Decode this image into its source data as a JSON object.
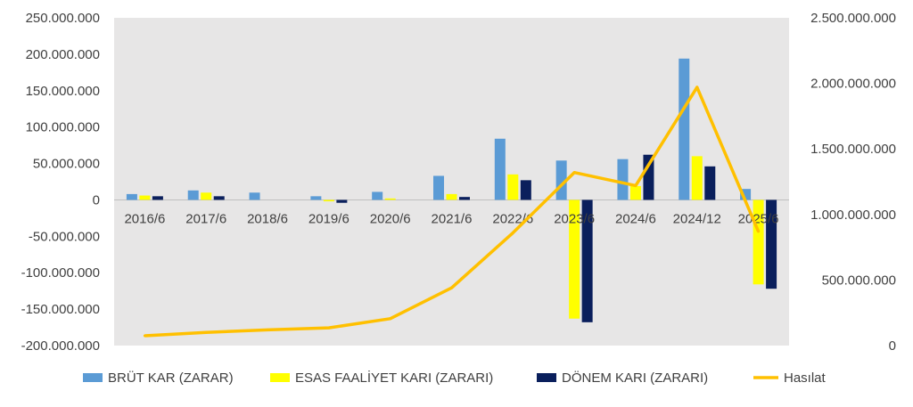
{
  "chart_data": {
    "type": "bar",
    "categories": [
      "2016/6",
      "2017/6",
      "2018/6",
      "2019/6",
      "2020/6",
      "2021/6",
      "2022/6",
      "2023/6",
      "2024/6",
      "2024/12",
      "2025/6"
    ],
    "series": [
      {
        "name": "BRÜT KAR (ZARAR)",
        "type": "bar",
        "axis": "left",
        "color": "#5b9bd5",
        "values": [
          8000000,
          13000000,
          10000000,
          5000000,
          11000000,
          33000000,
          84000000,
          54000000,
          56000000,
          194000000,
          15000000
        ]
      },
      {
        "name": "ESAS FAALİYET KARI (ZARARI)",
        "type": "bar",
        "axis": "left",
        "color": "#ffff00",
        "values": [
          6000000,
          10000000,
          0,
          -2000000,
          2000000,
          8000000,
          35000000,
          -163000000,
          19000000,
          60000000,
          -116000000
        ]
      },
      {
        "name": "DÖNEM KARI (ZARARI)",
        "type": "bar",
        "axis": "left",
        "color": "#0a1f5c",
        "values": [
          5000000,
          5000000,
          0,
          -4000000,
          0,
          4000000,
          27000000,
          -168000000,
          62000000,
          46000000,
          -122000000
        ]
      },
      {
        "name": "Hasılat",
        "type": "line",
        "axis": "right",
        "color": "#ffc000",
        "values": [
          75000000,
          100000000,
          120000000,
          135000000,
          205000000,
          440000000,
          860000000,
          1320000000,
          1220000000,
          1970000000,
          870000000
        ]
      }
    ],
    "y_left": {
      "min": -200000000,
      "max": 250000000,
      "ticks": [
        250000000,
        200000000,
        150000000,
        100000000,
        50000000,
        0,
        -50000000,
        -100000000,
        -150000000,
        -200000000
      ],
      "tick_labels": [
        "250.000.000",
        "200.000.000",
        "150.000.000",
        "100.000.000",
        "50.000.000",
        "0",
        "-50.000.000",
        "-100.000.000",
        "-150.000.000",
        "-200.000.000"
      ]
    },
    "y_right": {
      "min": 0,
      "max": 2500000000,
      "ticks": [
        2500000000,
        2000000000,
        1500000000,
        1000000000,
        500000000,
        0
      ],
      "tick_labels": [
        "2.500.000.000",
        "2.000.000.000",
        "1.500.000.000",
        "1.000.000.000",
        "500.000.000",
        "0"
      ]
    },
    "legend_position": "bottom",
    "plot_background": "#e7e6e6",
    "grid": false
  }
}
